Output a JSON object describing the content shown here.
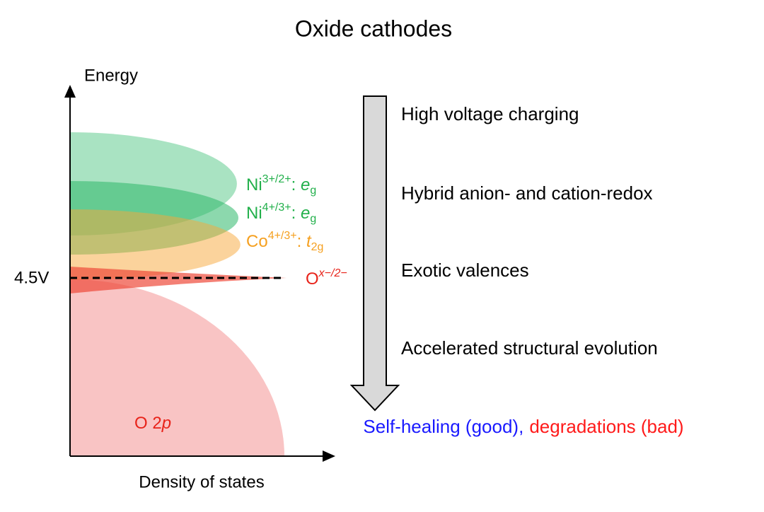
{
  "title": "Oxide cathodes",
  "y_axis_label": "Energy",
  "x_axis_label": "Density of states",
  "voltage_label": "4.5V",
  "o2p": {
    "prefix": "O 2",
    "orbital": "p"
  },
  "bands": [
    {
      "ion": "Ni",
      "charge": "3+/2+",
      "sep": ": ",
      "orbital": "e",
      "sub": "g"
    },
    {
      "ion": "Ni",
      "charge": "4+/3+",
      "sep": ": ",
      "orbital": "e",
      "sub": "g"
    },
    {
      "ion": "Co",
      "charge": "4+/3+",
      "sep": ": ",
      "orbital": "t",
      "sub": "2g"
    }
  ],
  "oxygen": {
    "ion": "O",
    "charge": "x−/2−"
  },
  "steps": [
    "High voltage charging",
    "Hybrid anion- and cation-redox",
    "Exotic valences",
    "Accelerated structural evolution"
  ],
  "outcome": {
    "good": "Self-healing (good)",
    "sep": ",",
    "bad": "degradations (bad)"
  }
}
